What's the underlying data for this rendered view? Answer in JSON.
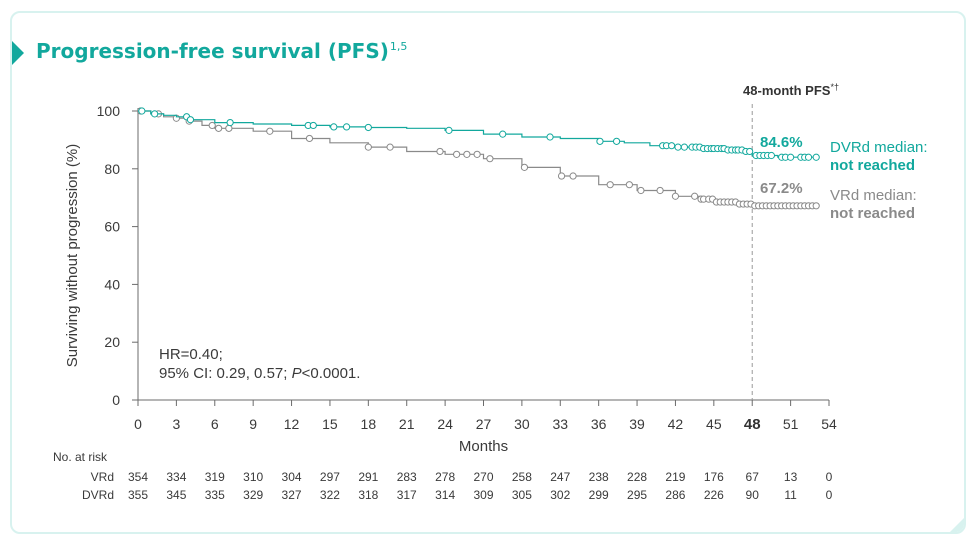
{
  "title": {
    "text": "Progression-free survival (PFS)",
    "superscript": "1,5"
  },
  "colors": {
    "dvrd": "#12a89d",
    "vrd": "#8a8a8a",
    "axis": "#6b6b6b",
    "text": "#333333"
  },
  "chart_data": {
    "type": "line",
    "subtype": "kaplan-meier",
    "xlabel": "Months",
    "ylabel": "Surviving without progression (%)",
    "xlim": [
      0,
      54
    ],
    "ylim": [
      0,
      100
    ],
    "xticks": [
      0,
      3,
      6,
      9,
      12,
      15,
      18,
      21,
      24,
      27,
      30,
      33,
      36,
      39,
      42,
      45,
      48,
      51,
      54
    ],
    "yticks": [
      0,
      20,
      40,
      60,
      80,
      100
    ],
    "highlight_month": 48,
    "series": [
      {
        "name": "DVRd",
        "color": "#12a89d",
        "x": [
          0,
          1,
          2,
          3,
          4,
          6,
          9,
          12,
          15,
          18,
          21,
          24,
          27,
          30,
          33,
          36,
          38,
          40,
          42,
          44,
          46,
          47.5,
          48,
          50,
          53
        ],
        "y": [
          100,
          99,
          98.5,
          98,
          97,
          96,
          95.5,
          95,
          94.5,
          94.3,
          94,
          93.3,
          92,
          91,
          90.5,
          89.5,
          89,
          88,
          87.5,
          87,
          86.5,
          86,
          84.6,
          84,
          84
        ],
        "censor_x": [
          0.3,
          1.3,
          3.8,
          4.1,
          7.2,
          13.3,
          13.7,
          15.3,
          16.3,
          18,
          24.3,
          28.5,
          32.2,
          36.1,
          37.4,
          41,
          41.3,
          41.7,
          42.2,
          42.7,
          43.3,
          43.6,
          43.9,
          44.2,
          44.5,
          44.8,
          45,
          45.3,
          45.6,
          45.8,
          46.1,
          46.4,
          46.7,
          46.9,
          47.2,
          47.5,
          47.8,
          48.3,
          48.6,
          48.9,
          49.2,
          49.5,
          50.3,
          50.6,
          51,
          51.8,
          52.1,
          52.4,
          53
        ]
      },
      {
        "name": "VRd",
        "color": "#8a8a8a",
        "x": [
          0,
          1,
          2,
          3,
          4,
          5,
          6,
          9,
          12,
          15,
          18,
          21,
          24,
          27,
          30,
          33,
          36,
          39,
          42,
          44,
          45,
          47,
          48,
          50,
          53
        ],
        "y": [
          100,
          99,
          98,
          97.5,
          96.5,
          95,
          94,
          93,
          90.5,
          89,
          87.5,
          86,
          85,
          83.5,
          80.5,
          77.5,
          74.5,
          72.5,
          70.5,
          69.5,
          68.5,
          67.8,
          67.2,
          67.2,
          67.2
        ],
        "censor_x": [
          0.2,
          1.6,
          3,
          4,
          5.8,
          6.3,
          7.1,
          10.3,
          13.4,
          18,
          19.7,
          23.6,
          24.9,
          25.7,
          26.5,
          27.5,
          30.2,
          33.1,
          34,
          36.9,
          38.4,
          39.3,
          40.8,
          42,
          43.5,
          44,
          44.2,
          44.6,
          44.9,
          45.2,
          45.5,
          45.8,
          46.1,
          46.4,
          46.7,
          47,
          47.3,
          47.6,
          47.9,
          48.2,
          48.5,
          48.8,
          49.1,
          49.4,
          49.7,
          50,
          50.3,
          50.6,
          50.9,
          51.2,
          51.5,
          51.8,
          52.1,
          52.4,
          52.7,
          53
        ]
      }
    ],
    "annotation_48": {
      "header": "48-month PFS",
      "header_marks": "*†",
      "dvrd_value": "84.6%",
      "vrd_value": "67.2%"
    },
    "legend": {
      "dvrd_line1": "DVRd median:",
      "dvrd_line2": "not reached",
      "vrd_line1": "VRd median:",
      "vrd_line2": "not reached"
    },
    "stats": {
      "line1": "HR=0.40;",
      "line2_prefix": "95% CI: 0.29, 0.57; ",
      "line2_p": "P",
      "line2_suffix": "<0.0001."
    },
    "risk_table": {
      "header": "No. at risk",
      "rows": [
        {
          "label": "VRd",
          "values": [
            "354",
            "334",
            "319",
            "310",
            "304",
            "297",
            "291",
            "283",
            "278",
            "270",
            "258",
            "247",
            "238",
            "228",
            "219",
            "176",
            "67",
            "13",
            "0"
          ]
        },
        {
          "label": "DVRd",
          "values": [
            "355",
            "345",
            "335",
            "329",
            "327",
            "322",
            "318",
            "317",
            "314",
            "309",
            "305",
            "302",
            "299",
            "295",
            "286",
            "226",
            "90",
            "11",
            "0"
          ]
        }
      ]
    }
  }
}
